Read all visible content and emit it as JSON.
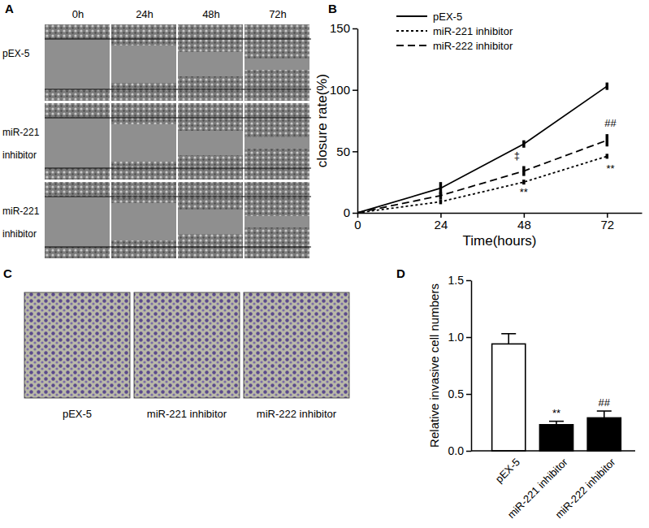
{
  "figure": {
    "panel_labels": [
      "A",
      "B",
      "C",
      "D"
    ]
  },
  "wound_healing": {
    "columns": [
      "0h",
      "24h",
      "48h",
      "72h"
    ],
    "rows": [
      [
        "pEX-5"
      ],
      [
        "miR-221",
        "inhibitor"
      ],
      [
        "miR-221",
        "inhibitor"
      ]
    ]
  },
  "invasion_images": {
    "labels": [
      "pEX-5",
      "miR-221 inhibitor",
      "miR-222 inhibitor"
    ]
  },
  "chart_data": [
    {
      "type": "line",
      "x_label": "Time(hours)",
      "y_label": "closure rate(%)",
      "x": [
        0,
        24,
        48,
        72
      ],
      "xlim": [
        0,
        82
      ],
      "xticks": [
        0,
        24,
        48,
        72
      ],
      "ylim": [
        0,
        150
      ],
      "yticks": [
        0,
        50,
        100,
        150
      ],
      "legend": "upper left",
      "series": [
        {
          "name": "pEX-5",
          "color": "#000000",
          "line_style": "solid",
          "values": [
            0,
            20,
            56,
            103
          ],
          "error": [
            0,
            5,
            3,
            3
          ]
        },
        {
          "name": "miR-221 inhibitor",
          "color": "#000000",
          "line_style": "dotted",
          "values": [
            0,
            9,
            25,
            46
          ],
          "error": [
            0,
            2,
            2,
            2
          ]
        },
        {
          "name": "miR-222 inhibitor",
          "color": "#000000",
          "line_style": "dashed",
          "values": [
            0,
            14,
            34,
            59
          ],
          "error": [
            0,
            3,
            4,
            5
          ]
        }
      ],
      "annotations": [
        {
          "text": "‡",
          "x": 46,
          "y": 46
        },
        {
          "text": "**",
          "x": 48,
          "y": 16
        },
        {
          "text": "##",
          "x": 73,
          "y": 72
        },
        {
          "text": "**",
          "x": 73,
          "y": 35
        }
      ]
    },
    {
      "type": "bar",
      "y_label": "Relative invasive cell numbers",
      "categories": [
        "pEX-5",
        "miR-221 inhibitor",
        "miR-222 inhibitor"
      ],
      "values": [
        0.94,
        0.23,
        0.29
      ],
      "error": [
        0.09,
        0.03,
        0.06
      ],
      "colors": [
        "#ffffff",
        "#000000",
        "#000000"
      ],
      "ylim": [
        0,
        1.5
      ],
      "yticks": [
        {
          "value": 0,
          "label": "0.0"
        },
        {
          "value": 0.5,
          "label": "0.5"
        },
        {
          "value": 1,
          "label": "1.0"
        },
        {
          "value": 1.5,
          "label": "1.5"
        }
      ],
      "annotations": [
        {
          "text": "**",
          "category": 1
        },
        {
          "text": "##",
          "category": 2
        }
      ]
    }
  ]
}
